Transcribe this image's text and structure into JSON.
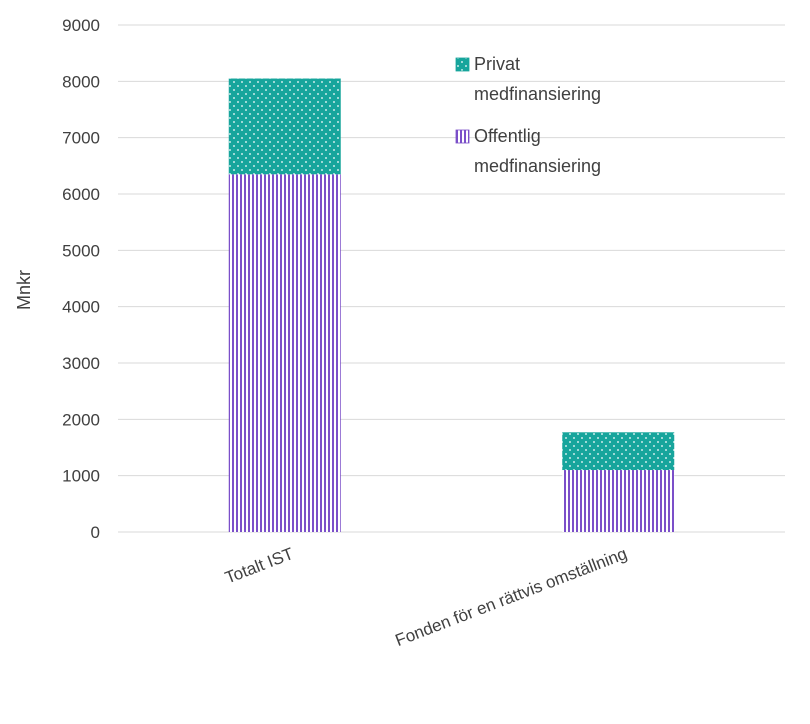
{
  "chart_data": {
    "type": "bar",
    "stacked": true,
    "categories": [
      "Totalt IST",
      "Fonden för en rättvis omställning"
    ],
    "series": [
      {
        "name": "Offentlig medfinansiering",
        "values": [
          6350,
          1100
        ],
        "color": "#7B4FC9",
        "pattern": "vertical-stripes"
      },
      {
        "name": "Privat medfinansiering",
        "values": [
          1700,
          670
        ],
        "color": "#17A59C",
        "pattern": "dots"
      }
    ],
    "ylabel": "Mnkr",
    "xlabel": "",
    "title": "",
    "ylim": [
      0,
      9000
    ],
    "yticks": [
      0,
      1000,
      2000,
      3000,
      4000,
      5000,
      6000,
      7000,
      8000,
      9000
    ],
    "grid": true,
    "legend_position": "top-right",
    "legend": [
      {
        "lines": [
          "Privat",
          "medfinansiering"
        ],
        "series": 1
      },
      {
        "lines": [
          "Offentlig",
          "medfinansiering"
        ],
        "series": 0
      }
    ]
  }
}
